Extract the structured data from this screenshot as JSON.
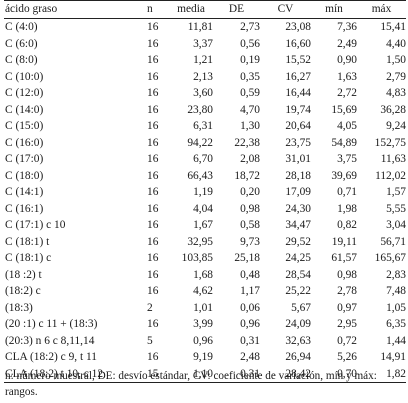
{
  "table": {
    "headers": {
      "name": "ácido graso",
      "n": "n",
      "media": "media",
      "de": "DE",
      "cv": "CV",
      "min": "mín",
      "max": "máx"
    },
    "rows": [
      {
        "name": "C (4:0)",
        "n": "16",
        "media": "11,81",
        "de": "2,73",
        "cv": "23,08",
        "min": "7,36",
        "max": "15,41"
      },
      {
        "name": "C (6:0)",
        "n": "16",
        "media": "3,37",
        "de": "0,56",
        "cv": "16,60",
        "min": "2,49",
        "max": "4,40"
      },
      {
        "name": "C (8:0)",
        "n": "16",
        "media": "1,21",
        "de": "0,19",
        "cv": "15,52",
        "min": "0,90",
        "max": "1,50"
      },
      {
        "name": "C (10:0)",
        "n": "16",
        "media": "2,13",
        "de": "0,35",
        "cv": "16,27",
        "min": "1,63",
        "max": "2,79"
      },
      {
        "name": "C (12:0)",
        "n": "16",
        "media": "3,60",
        "de": "0,59",
        "cv": "16,44",
        "min": "2,72",
        "max": "4,83"
      },
      {
        "name": "C (14:0)",
        "n": "16",
        "media": "23,80",
        "de": "4,70",
        "cv": "19,74",
        "min": "15,69",
        "max": "36,28"
      },
      {
        "name": "C (15:0)",
        "n": "16",
        "media": "6,31",
        "de": "1,30",
        "cv": "20,64",
        "min": "4,05",
        "max": "9,24"
      },
      {
        "name": "C (16:0)",
        "n": "16",
        "media": "94,22",
        "de": "22,38",
        "cv": "23,75",
        "min": "54,89",
        "max": "152,75"
      },
      {
        "name": "C (17:0)",
        "n": "16",
        "media": "6,70",
        "de": "2,08",
        "cv": "31,01",
        "min": "3,75",
        "max": "11,63"
      },
      {
        "name": "C (18:0)",
        "n": "16",
        "media": "66,43",
        "de": "18,72",
        "cv": "28,18",
        "min": "39,69",
        "max": "112,02"
      },
      {
        "name": "C (14:1)",
        "n": "16",
        "media": "1,19",
        "de": "0,20",
        "cv": "17,09",
        "min": "0,71",
        "max": "1,57"
      },
      {
        "name": "C (16:1)",
        "n": "16",
        "media": "4,04",
        "de": "0,98",
        "cv": "24,30",
        "min": "1,98",
        "max": "5,55"
      },
      {
        "name": "C (17:1) c 10",
        "n": "16",
        "media": "1,67",
        "de": "0,58",
        "cv": "34,47",
        "min": "0,82",
        "max": "3,04"
      },
      {
        "name": "C (18:1) t",
        "n": "16",
        "media": "32,95",
        "de": "9,73",
        "cv": "29,52",
        "min": "19,11",
        "max": "56,71"
      },
      {
        "name": "C (18:1) c",
        "n": "16",
        "media": "103,85",
        "de": "25,18",
        "cv": "24,25",
        "min": "61,57",
        "max": "165,67"
      },
      {
        "name": "(18 :2) t",
        "n": "16",
        "media": "1,68",
        "de": "0,48",
        "cv": "28,54",
        "min": "0,98",
        "max": "2,83"
      },
      {
        "name": "(18:2) c",
        "n": "16",
        "media": "4,62",
        "de": "1,17",
        "cv": "25,22",
        "min": "2,78",
        "max": "7,48"
      },
      {
        "name": "(18:3)",
        "n": "2",
        "media": "1,01",
        "de": "0,06",
        "cv": "5,67",
        "min": "0,97",
        "max": "1,05"
      },
      {
        "name": "(20 :1) c 11 + (18:3)",
        "n": "16",
        "media": "3,99",
        "de": "0,96",
        "cv": "24,09",
        "min": "2,95",
        "max": "6,35"
      },
      {
        "name": "(20:3) n 6 c 8,11,14",
        "n": "5",
        "media": "0,96",
        "de": "0,31",
        "cv": "32,63",
        "min": "0,72",
        "max": "1,44"
      },
      {
        "name": "CLA (18:2) c 9, t 11",
        "n": "16",
        "media": "9,19",
        "de": "2,48",
        "cv": "26,94",
        "min": "5,26",
        "max": "14,91"
      },
      {
        "name": "CLA (18:2) t 10, c 12",
        "n": "15",
        "media": "1,10",
        "de": "0,31",
        "cv": "28,42",
        "min": "0,70",
        "max": "1,82"
      }
    ]
  },
  "footnote": "n: número muestral, DE: desvío estándar, CV: coeficiente de variación, mín y máx: rangos."
}
